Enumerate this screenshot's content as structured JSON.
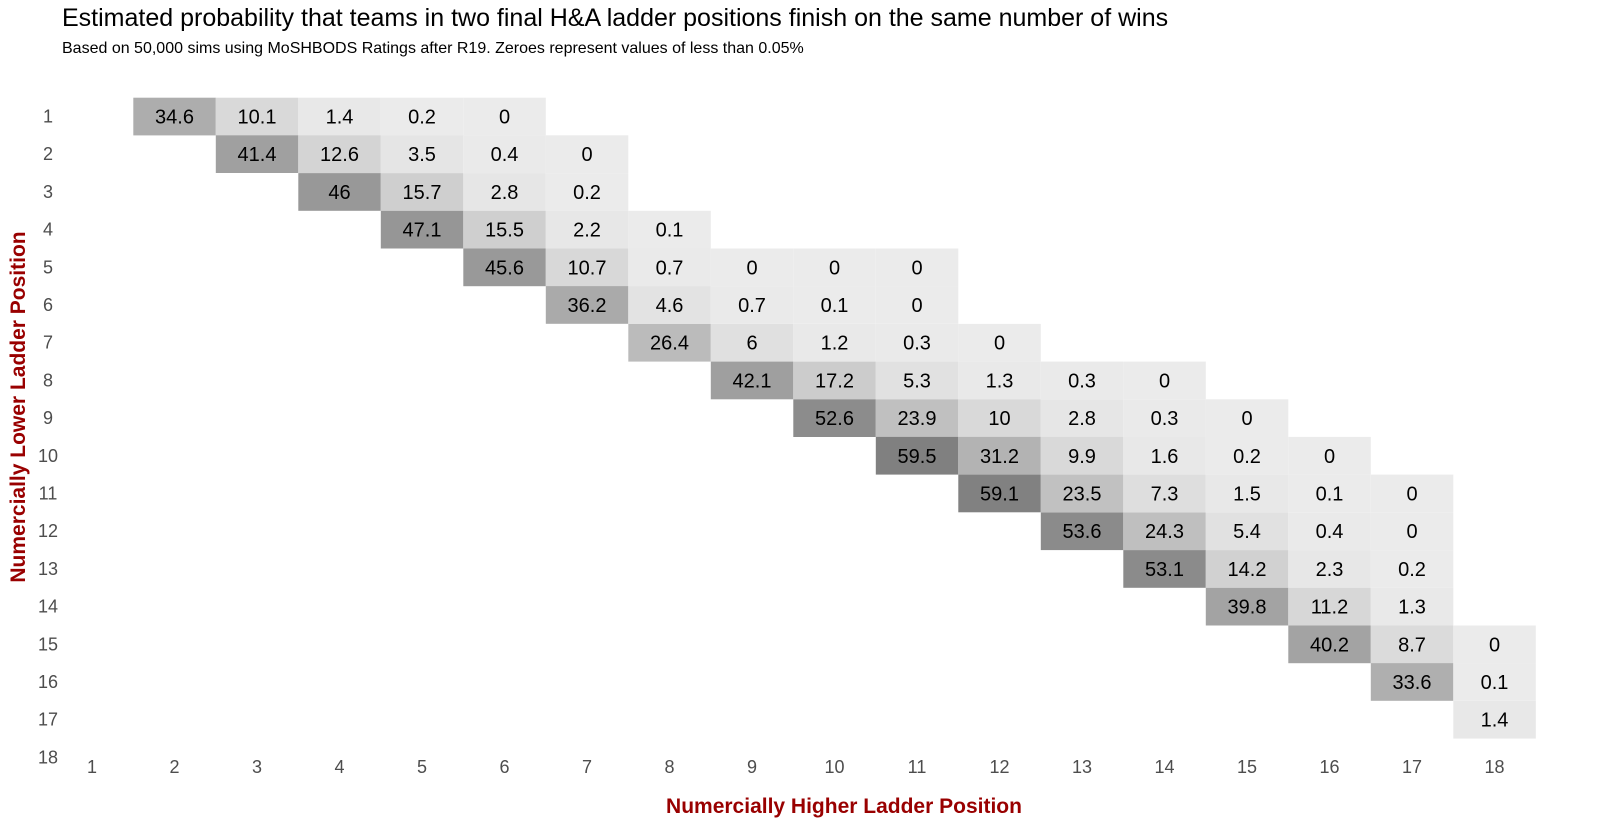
{
  "chart_data": {
    "type": "heatmap",
    "title": "Estimated probability that teams in two final H&A ladder positions finish on the same number of wins",
    "subtitle": "Based on 50,000 sims using MoSHBODS Ratings after R19. Zeroes represent values of less than 0.05%",
    "xlabel": "Numercially Higher Ladder Position",
    "ylabel": "Numercially Lower Ladder Position",
    "x_ticks": [
      "1",
      "2",
      "3",
      "4",
      "5",
      "6",
      "7",
      "8",
      "9",
      "10",
      "11",
      "12",
      "13",
      "14",
      "15",
      "16",
      "17",
      "18"
    ],
    "y_ticks": [
      "1",
      "2",
      "3",
      "4",
      "5",
      "6",
      "7",
      "8",
      "9",
      "10",
      "11",
      "12",
      "13",
      "14",
      "15",
      "16",
      "17",
      "18"
    ],
    "color_scale": {
      "low": "#ebebeb",
      "high": "#7f7f7f",
      "min": 0,
      "max": 60
    },
    "cells": [
      {
        "y": 1,
        "x": 2,
        "value": "34.6"
      },
      {
        "y": 1,
        "x": 3,
        "value": "10.1"
      },
      {
        "y": 1,
        "x": 4,
        "value": "1.4"
      },
      {
        "y": 1,
        "x": 5,
        "value": "0.2"
      },
      {
        "y": 1,
        "x": 6,
        "value": "0"
      },
      {
        "y": 2,
        "x": 3,
        "value": "41.4"
      },
      {
        "y": 2,
        "x": 4,
        "value": "12.6"
      },
      {
        "y": 2,
        "x": 5,
        "value": "3.5"
      },
      {
        "y": 2,
        "x": 6,
        "value": "0.4"
      },
      {
        "y": 2,
        "x": 7,
        "value": "0"
      },
      {
        "y": 3,
        "x": 4,
        "value": "46"
      },
      {
        "y": 3,
        "x": 5,
        "value": "15.7"
      },
      {
        "y": 3,
        "x": 6,
        "value": "2.8"
      },
      {
        "y": 3,
        "x": 7,
        "value": "0.2"
      },
      {
        "y": 4,
        "x": 5,
        "value": "47.1"
      },
      {
        "y": 4,
        "x": 6,
        "value": "15.5"
      },
      {
        "y": 4,
        "x": 7,
        "value": "2.2"
      },
      {
        "y": 4,
        "x": 8,
        "value": "0.1"
      },
      {
        "y": 5,
        "x": 6,
        "value": "45.6"
      },
      {
        "y": 5,
        "x": 7,
        "value": "10.7"
      },
      {
        "y": 5,
        "x": 8,
        "value": "0.7"
      },
      {
        "y": 5,
        "x": 9,
        "value": "0"
      },
      {
        "y": 5,
        "x": 10,
        "value": "0"
      },
      {
        "y": 5,
        "x": 11,
        "value": "0"
      },
      {
        "y": 6,
        "x": 7,
        "value": "36.2"
      },
      {
        "y": 6,
        "x": 8,
        "value": "4.6"
      },
      {
        "y": 6,
        "x": 9,
        "value": "0.7"
      },
      {
        "y": 6,
        "x": 10,
        "value": "0.1"
      },
      {
        "y": 6,
        "x": 11,
        "value": "0"
      },
      {
        "y": 7,
        "x": 8,
        "value": "26.4"
      },
      {
        "y": 7,
        "x": 9,
        "value": "6"
      },
      {
        "y": 7,
        "x": 10,
        "value": "1.2"
      },
      {
        "y": 7,
        "x": 11,
        "value": "0.3"
      },
      {
        "y": 7,
        "x": 12,
        "value": "0"
      },
      {
        "y": 8,
        "x": 9,
        "value": "42.1"
      },
      {
        "y": 8,
        "x": 10,
        "value": "17.2"
      },
      {
        "y": 8,
        "x": 11,
        "value": "5.3"
      },
      {
        "y": 8,
        "x": 12,
        "value": "1.3"
      },
      {
        "y": 8,
        "x": 13,
        "value": "0.3"
      },
      {
        "y": 8,
        "x": 14,
        "value": "0"
      },
      {
        "y": 9,
        "x": 10,
        "value": "52.6"
      },
      {
        "y": 9,
        "x": 11,
        "value": "23.9"
      },
      {
        "y": 9,
        "x": 12,
        "value": "10"
      },
      {
        "y": 9,
        "x": 13,
        "value": "2.8"
      },
      {
        "y": 9,
        "x": 14,
        "value": "0.3"
      },
      {
        "y": 9,
        "x": 15,
        "value": "0"
      },
      {
        "y": 10,
        "x": 11,
        "value": "59.5"
      },
      {
        "y": 10,
        "x": 12,
        "value": "31.2"
      },
      {
        "y": 10,
        "x": 13,
        "value": "9.9"
      },
      {
        "y": 10,
        "x": 14,
        "value": "1.6"
      },
      {
        "y": 10,
        "x": 15,
        "value": "0.2"
      },
      {
        "y": 10,
        "x": 16,
        "value": "0"
      },
      {
        "y": 11,
        "x": 12,
        "value": "59.1"
      },
      {
        "y": 11,
        "x": 13,
        "value": "23.5"
      },
      {
        "y": 11,
        "x": 14,
        "value": "7.3"
      },
      {
        "y": 11,
        "x": 15,
        "value": "1.5"
      },
      {
        "y": 11,
        "x": 16,
        "value": "0.1"
      },
      {
        "y": 11,
        "x": 17,
        "value": "0"
      },
      {
        "y": 12,
        "x": 13,
        "value": "53.6"
      },
      {
        "y": 12,
        "x": 14,
        "value": "24.3"
      },
      {
        "y": 12,
        "x": 15,
        "value": "5.4"
      },
      {
        "y": 12,
        "x": 16,
        "value": "0.4"
      },
      {
        "y": 12,
        "x": 17,
        "value": "0"
      },
      {
        "y": 13,
        "x": 14,
        "value": "53.1"
      },
      {
        "y": 13,
        "x": 15,
        "value": "14.2"
      },
      {
        "y": 13,
        "x": 16,
        "value": "2.3"
      },
      {
        "y": 13,
        "x": 17,
        "value": "0.2"
      },
      {
        "y": 14,
        "x": 15,
        "value": "39.8"
      },
      {
        "y": 14,
        "x": 16,
        "value": "11.2"
      },
      {
        "y": 14,
        "x": 17,
        "value": "1.3"
      },
      {
        "y": 15,
        "x": 16,
        "value": "40.2"
      },
      {
        "y": 15,
        "x": 17,
        "value": "8.7"
      },
      {
        "y": 15,
        "x": 18,
        "value": "0"
      },
      {
        "y": 16,
        "x": 17,
        "value": "33.6"
      },
      {
        "y": 16,
        "x": 18,
        "value": "0.1"
      },
      {
        "y": 17,
        "x": 18,
        "value": "1.4"
      }
    ]
  }
}
